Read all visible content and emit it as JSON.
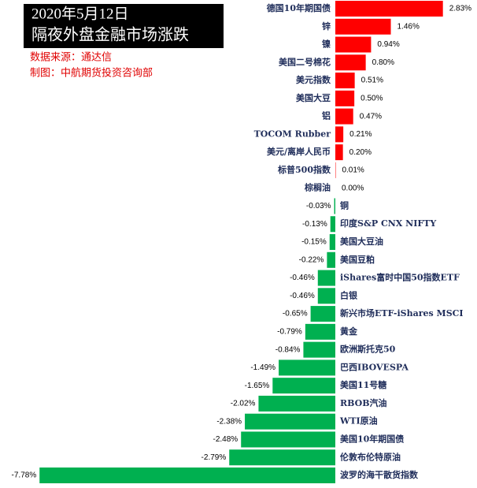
{
  "chart_data": {
    "type": "bar",
    "orientation": "horizontal",
    "title": "2020年5月12日",
    "subtitle": "隔夜外盘金融市场涨跌",
    "source": "数据来源：通达信",
    "credit": "制图：中航期货投资咨询部",
    "positive_color": "#ff0000",
    "negative_color": "#00b050",
    "categories": [
      "德国10年期国债",
      "锌",
      "镍",
      "美国二号棉花",
      "美元指数",
      "美国大豆",
      "铝",
      "TOCOM Rubber",
      "美元/离岸人民币",
      "标普500指数",
      "棕榈油",
      "铜",
      "印度S&P CNX NIFTY",
      "美国大豆油",
      "美国豆粕",
      "iShares富时中国50指数ETF",
      "白银",
      "新兴市场ETF-iShares MSCI",
      "黄金",
      "欧洲斯托克50",
      "巴西IBOVESPA",
      "美国11号糖",
      "RBOB汽油",
      "WTI原油",
      "美国10年期国债",
      "伦敦布伦特原油",
      "波罗的海干散货指数"
    ],
    "values": [
      2.83,
      1.46,
      0.94,
      0.8,
      0.51,
      0.5,
      0.47,
      0.21,
      0.2,
      0.01,
      0.0,
      -0.03,
      -0.13,
      -0.15,
      -0.22,
      -0.46,
      -0.46,
      -0.65,
      -0.79,
      -0.84,
      -1.49,
      -1.65,
      -2.02,
      -2.38,
      -2.48,
      -2.79,
      -7.78
    ],
    "value_labels": [
      "2.83%",
      "1.46%",
      "0.94%",
      "0.80%",
      "0.51%",
      "0.50%",
      "0.47%",
      "0.21%",
      "0.20%",
      "0.01%",
      "0.00%",
      "-0.03%",
      "-0.13%",
      "-0.15%",
      "-0.22%",
      "-0.46%",
      "-0.46%",
      "-0.65%",
      "-0.79%",
      "-0.84%",
      "-1.49%",
      "-1.65%",
      "-2.02%",
      "-2.38%",
      "-2.48%",
      "-2.79%",
      "-7.78%"
    ]
  }
}
